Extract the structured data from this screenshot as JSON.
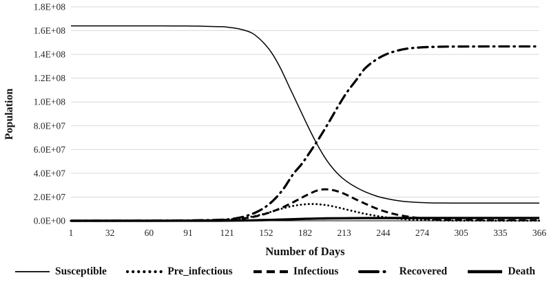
{
  "chart_data": {
    "type": "line",
    "title": "",
    "xlabel": "Number of Days",
    "ylabel": "Population",
    "xlim": [
      1,
      366
    ],
    "ylim": [
      0,
      180000000.0
    ],
    "grid": "horizontal",
    "grid_color": "#d9d9d9",
    "axis_line_color": "#000000",
    "line_color": "#000000",
    "tick_color": "#262626",
    "legend_position": "bottom",
    "x_ticks": [
      "1",
      "32",
      "60",
      "91",
      "121",
      "152",
      "182",
      "213",
      "244",
      "274",
      "305",
      "335",
      "366"
    ],
    "y_ticks": [
      {
        "value": 0.0,
        "label": "0.0E+00"
      },
      {
        "value": 20000000.0,
        "label": "2.0E+07"
      },
      {
        "value": 40000000.0,
        "label": "4.0E+07"
      },
      {
        "value": 60000000.0,
        "label": "6.0E+07"
      },
      {
        "value": 80000000.0,
        "label": "8.0E+07"
      },
      {
        "value": 100000000.0,
        "label": "1.0E+08"
      },
      {
        "value": 120000000.0,
        "label": "1.2E+08"
      },
      {
        "value": 140000000.0,
        "label": "1.4E+08"
      },
      {
        "value": 160000000.0,
        "label": "1.6E+08"
      },
      {
        "value": 180000000.0,
        "label": "1.8E+08"
      }
    ],
    "series": [
      {
        "name": "Susceptible",
        "style": "solid",
        "points": [
          [
            1,
            164000000.0
          ],
          [
            30,
            164000000.0
          ],
          [
            60,
            164000000.0
          ],
          [
            91,
            163900000.0
          ],
          [
            105,
            163700000.0
          ],
          [
            115,
            163400000.0
          ],
          [
            121,
            163200000.0
          ],
          [
            132,
            161500000.0
          ],
          [
            142,
            158000000.0
          ],
          [
            150,
            151000000.0
          ],
          [
            157,
            142000000.0
          ],
          [
            164,
            129000000.0
          ],
          [
            171,
            113000000.0
          ],
          [
            178,
            97000000.0
          ],
          [
            185,
            81000000.0
          ],
          [
            192,
            66000000.0
          ],
          [
            199,
            53000000.0
          ],
          [
            206,
            43000000.0
          ],
          [
            213,
            35500000.0
          ],
          [
            221,
            29500000.0
          ],
          [
            230,
            24500000.0
          ],
          [
            240,
            20500000.0
          ],
          [
            250,
            18000000.0
          ],
          [
            260,
            16300000.0
          ],
          [
            272,
            15400000.0
          ],
          [
            285,
            15000000.0
          ],
          [
            300,
            14900000.0
          ],
          [
            330,
            14900000.0
          ],
          [
            366,
            14900000.0
          ]
        ]
      },
      {
        "name": "Pre_infectious",
        "style": "dotted",
        "points": [
          [
            1,
            50000.0
          ],
          [
            60,
            80000.0
          ],
          [
            91,
            200000.0
          ],
          [
            110,
            500000.0
          ],
          [
            121,
            900000.0
          ],
          [
            130,
            1600000.0
          ],
          [
            138,
            2700000.0
          ],
          [
            146,
            4400000.0
          ],
          [
            153,
            6300000.0
          ],
          [
            160,
            8500000.0
          ],
          [
            167,
            10700000.0
          ],
          [
            174,
            12500000.0
          ],
          [
            181,
            13600000.0
          ],
          [
            188,
            14100000.0
          ],
          [
            195,
            13800000.0
          ],
          [
            202,
            12800000.0
          ],
          [
            209,
            11200000.0
          ],
          [
            216,
            9400000.0
          ],
          [
            223,
            7600000.0
          ],
          [
            230,
            5900000.0
          ],
          [
            238,
            4300000.0
          ],
          [
            246,
            3000000.0
          ],
          [
            254,
            2000000.0
          ],
          [
            263,
            1250000.0
          ],
          [
            273,
            700000.0
          ],
          [
            285,
            400000.0
          ],
          [
            300,
            200000.0
          ],
          [
            330,
            100000.0
          ],
          [
            366,
            100000.0
          ]
        ]
      },
      {
        "name": "Infectious",
        "style": "dashed",
        "points": [
          [
            1,
            30000.0
          ],
          [
            60,
            60000.0
          ],
          [
            91,
            150000.0
          ],
          [
            110,
            400000.0
          ],
          [
            121,
            750000.0
          ],
          [
            130,
            1400000.0
          ],
          [
            138,
            2400000.0
          ],
          [
            146,
            4000000.0
          ],
          [
            153,
            6000000.0
          ],
          [
            160,
            8600000.0
          ],
          [
            167,
            11800000.0
          ],
          [
            174,
            15500000.0
          ],
          [
            181,
            19500000.0
          ],
          [
            187,
            22800000.0
          ],
          [
            193,
            25500000.0
          ],
          [
            199,
            26500000.0
          ],
          [
            205,
            25800000.0
          ],
          [
            211,
            24000000.0
          ],
          [
            217,
            21200000.0
          ],
          [
            223,
            18000000.0
          ],
          [
            230,
            14500000.0
          ],
          [
            237,
            11200000.0
          ],
          [
            244,
            8400000.0
          ],
          [
            251,
            6200000.0
          ],
          [
            258,
            4500000.0
          ],
          [
            266,
            3100000.0
          ],
          [
            274,
            2100000.0
          ],
          [
            283,
            1400000.0
          ],
          [
            295,
            900000.0
          ],
          [
            310,
            600000.0
          ],
          [
            330,
            450000.0
          ],
          [
            366,
            400000.0
          ]
        ]
      },
      {
        "name": "Recovered",
        "style": "dashdot",
        "points": [
          [
            1,
            0
          ],
          [
            60,
            100000.0
          ],
          [
            100,
            400000.0
          ],
          [
            121,
            1000000.0
          ],
          [
            130,
            2200000.0
          ],
          [
            138,
            4200000.0
          ],
          [
            146,
            7500000.0
          ],
          [
            153,
            12000000.0
          ],
          [
            160,
            18500000.0
          ],
          [
            167,
            27500000.0
          ],
          [
            174,
            39000000.0
          ],
          [
            181,
            48000000.0
          ],
          [
            188,
            59000000.0
          ],
          [
            195,
            70500000.0
          ],
          [
            202,
            83000000.0
          ],
          [
            209,
            96000000.0
          ],
          [
            216,
            108000000.0
          ],
          [
            223,
            118000000.0
          ],
          [
            230,
            128000000.0
          ],
          [
            238,
            135000000.0
          ],
          [
            246,
            139800000.0
          ],
          [
            254,
            142800000.0
          ],
          [
            262,
            144700000.0
          ],
          [
            272,
            145800000.0
          ],
          [
            285,
            146400000.0
          ],
          [
            300,
            146600000.0
          ],
          [
            330,
            146700000.0
          ],
          [
            366,
            146700000.0
          ]
        ]
      },
      {
        "name": "Death",
        "style": "thick",
        "points": [
          [
            1,
            0
          ],
          [
            60,
            10000.0
          ],
          [
            100,
            50000.0
          ],
          [
            121,
            120000.0
          ],
          [
            140,
            350000.0
          ],
          [
            155,
            700000.0
          ],
          [
            170,
            1200000.0
          ],
          [
            185,
            1700000.0
          ],
          [
            200,
            2000000.0
          ],
          [
            215,
            2150000.0
          ],
          [
            230,
            2250000.0
          ],
          [
            250,
            2300000.0
          ],
          [
            270,
            2330000.0
          ],
          [
            300,
            2350000.0
          ],
          [
            366,
            2350000.0
          ]
        ]
      }
    ]
  }
}
